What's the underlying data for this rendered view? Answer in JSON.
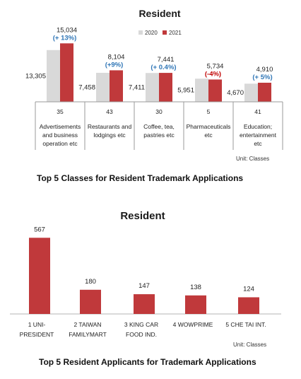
{
  "chart_data": [
    {
      "type": "bar",
      "title": "Resident",
      "caption": "Top 5 Classes for Resident Trademark Applications",
      "unit_note": "Unit: Classes",
      "categories": [
        {
          "code": "35",
          "label": [
            "Advertisements",
            "and business",
            "operation etc"
          ]
        },
        {
          "code": "43",
          "label": [
            "Restaurants and",
            "lodgings etc"
          ]
        },
        {
          "code": "30",
          "label": [
            "Coffee, tea,",
            "pastries etc"
          ]
        },
        {
          "code": "5",
          "label": [
            "Pharmaceuticals",
            "etc"
          ]
        },
        {
          "code": "41",
          "label": [
            "Education;",
            "entertainment",
            "etc"
          ]
        }
      ],
      "series": [
        {
          "name": "2020",
          "color": "#d9d9d9",
          "values": [
            13305,
            7458,
            7411,
            5951,
            4670
          ]
        },
        {
          "name": "2021",
          "color": "#c0393b",
          "values": [
            15034,
            8104,
            7441,
            5734,
            4910
          ]
        }
      ],
      "value_labels": {
        "2020": [
          "13,305",
          "7,458",
          "7,411",
          "5,951",
          "4,670"
        ],
        "2021": [
          "15,034",
          "8,104",
          "7,441",
          "5,734",
          "4,910"
        ]
      },
      "changes": [
        {
          "text": "(+ 13%)",
          "color": "#2e75b6"
        },
        {
          "text": "(+9%)",
          "color": "#2e75b6"
        },
        {
          "text": "(+ 0.4%)",
          "color": "#2e75b6"
        },
        {
          "text": "(-4%)",
          "color": "#c00000"
        },
        {
          "text": "(+ 5%)",
          "color": "#2e75b6"
        }
      ],
      "legend_position": "top-right",
      "ylim": [
        0,
        16000
      ]
    },
    {
      "type": "bar",
      "title": "Resident",
      "caption": "Top 5 Resident  Applicants for Trademark  Applications",
      "unit_note": "Unit: Classes",
      "categories": [
        [
          "1 UNI-",
          "PRESIDENT"
        ],
        [
          "2 TAIWAN",
          "FAMILYMART"
        ],
        [
          "3 KING CAR",
          "FOOD IND."
        ],
        [
          "4 WOWPRIME"
        ],
        [
          "5 CHE TAI INT."
        ]
      ],
      "series": [
        {
          "name": "",
          "color": "#c0393b",
          "values": [
            567,
            180,
            147,
            138,
            124
          ]
        }
      ],
      "value_labels": [
        "567",
        "180",
        "147",
        "138",
        "124"
      ],
      "ylim": [
        0,
        600
      ]
    }
  ]
}
